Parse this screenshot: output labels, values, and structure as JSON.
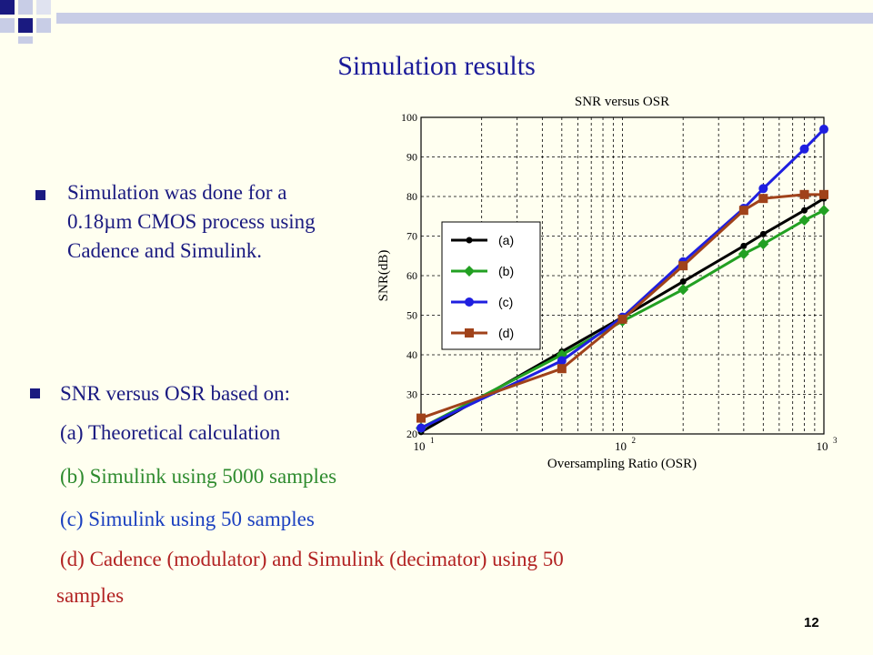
{
  "slide": {
    "title": "Simulation results",
    "bullet1": "Simulation was done for a 0.18µm CMOS process using Cadence and Simulink.",
    "bullet2": "SNR versus OSR based on:",
    "items": [
      "(a) Theoretical calculation",
      "(b) Simulink using 5000 samples",
      "(c) Simulink using 50 samples",
      "(d) Cadence (modulator) and Simulink  (decimator) using 50",
      "samples"
    ],
    "page_number": "12",
    "colors": {
      "title": "#1a1a99",
      "body": "#1a1a80",
      "item_a": "#1a1a80",
      "item_b": "#2e8b2e",
      "item_c": "#1a3fbf",
      "item_d": "#b22222"
    }
  },
  "chart_data": {
    "type": "line",
    "title": "SNR versus OSR",
    "xlabel": "Oversampling Ratio (OSR)",
    "ylabel": "SNR(dB)",
    "xscale": "log",
    "xlim": [
      10,
      1000
    ],
    "ylim": [
      20,
      100
    ],
    "x_ticks": [
      {
        "base": "10",
        "exp": "1",
        "value": 10
      },
      {
        "base": "10",
        "exp": "2",
        "value": 100
      },
      {
        "base": "10",
        "exp": "3",
        "value": 1000
      }
    ],
    "y_ticks": [
      "20",
      "30",
      "40",
      "50",
      "60",
      "70",
      "80",
      "90",
      "100"
    ],
    "grid": true,
    "legend_position": "center-left",
    "series": [
      {
        "name": "(a)",
        "color": "#000000",
        "marker": "dot",
        "x": [
          10,
          50,
          100,
          200,
          400,
          500,
          800,
          1000
        ],
        "y": [
          20.5,
          40.8,
          49.5,
          58.5,
          67.5,
          70.5,
          76.5,
          79.5
        ]
      },
      {
        "name": "(b)",
        "color": "#22a022",
        "marker": "diamond",
        "x": [
          10,
          50,
          100,
          200,
          400,
          500,
          800,
          1000
        ],
        "y": [
          21.5,
          40,
          48.5,
          56.5,
          65.5,
          68,
          74,
          76.5
        ]
      },
      {
        "name": "(c)",
        "color": "#1f1fe0",
        "marker": "circle",
        "x": [
          10,
          50,
          100,
          200,
          400,
          500,
          800,
          1000
        ],
        "y": [
          21.5,
          38.5,
          49.5,
          63.5,
          77,
          82,
          92,
          97
        ]
      },
      {
        "name": "(d)",
        "color": "#a0421a",
        "marker": "square",
        "x": [
          10,
          50,
          100,
          200,
          400,
          500,
          800,
          1000
        ],
        "y": [
          24,
          36.5,
          49,
          62.5,
          76.5,
          79.5,
          80.5,
          80.5
        ]
      }
    ]
  }
}
